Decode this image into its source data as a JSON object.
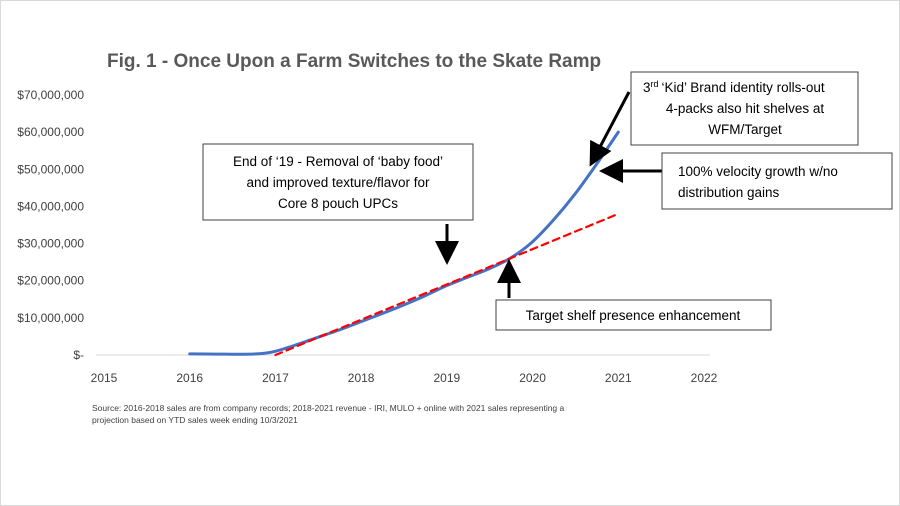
{
  "chart_data": {
    "type": "line",
    "title": "Fig. 1 - Once Upon a Farm Switches to the Skate Ramp",
    "x_ticks": [
      "2015",
      "2016",
      "2017",
      "2018",
      "2019",
      "2020",
      "2021",
      "2022"
    ],
    "y_ticks": [
      "$-",
      "$10,000,000",
      "$20,000,000",
      "$30,000,000",
      "$40,000,000",
      "$50,000,000",
      "$60,000,000",
      "$70,000,000"
    ],
    "xlim": [
      2015,
      2022
    ],
    "ylim": [
      0,
      70000000
    ],
    "grid": false,
    "series": [
      {
        "style": "solid",
        "color": "#4472c4",
        "points": [
          [
            2016.0,
            300000
          ],
          [
            2016.3,
            250000
          ],
          [
            2016.6,
            200000
          ],
          [
            2016.85,
            400000
          ],
          [
            2017.0,
            1000000
          ],
          [
            2017.25,
            2800000
          ],
          [
            2017.5,
            4800000
          ],
          [
            2017.75,
            6800000
          ],
          [
            2018.0,
            9000000
          ],
          [
            2018.25,
            11200000
          ],
          [
            2018.5,
            13500000
          ],
          [
            2018.75,
            16000000
          ],
          [
            2019.0,
            18700000
          ],
          [
            2019.25,
            21000000
          ],
          [
            2019.5,
            23300000
          ],
          [
            2019.75,
            26200000
          ],
          [
            2020.0,
            30500000
          ],
          [
            2020.25,
            36500000
          ],
          [
            2020.5,
            43500000
          ],
          [
            2020.75,
            51500000
          ],
          [
            2021.0,
            60000000
          ]
        ]
      },
      {
        "style": "dashed",
        "color": "#ff0000",
        "points": [
          [
            2017.0,
            0
          ],
          [
            2021.0,
            38000000
          ]
        ]
      }
    ],
    "annotations": [
      {
        "lines": [
          "End of ‘19 - Removal of ‘baby food’",
          "and improved texture/flavor for",
          "Core 8 pouch UPCs"
        ]
      },
      {
        "lines": [
          "Target shelf presence enhancement"
        ]
      },
      {
        "lines": [
          "100% velocity growth w/no",
          "distribution gains"
        ]
      },
      {
        "lines": [
          "‘Kid’ Brand identity rolls-out",
          "4-packs also hit shelves at",
          "WFM/Target"
        ],
        "prefix": "3",
        "prefix_sup": "rd"
      }
    ],
    "source_note": [
      "Source: 2016-2018 sales are from company records; 2018-2021 revenue - IRI, MULO + online with 2021 sales representing a",
      "projection based on YTD sales week ending 10/3/2021"
    ]
  }
}
